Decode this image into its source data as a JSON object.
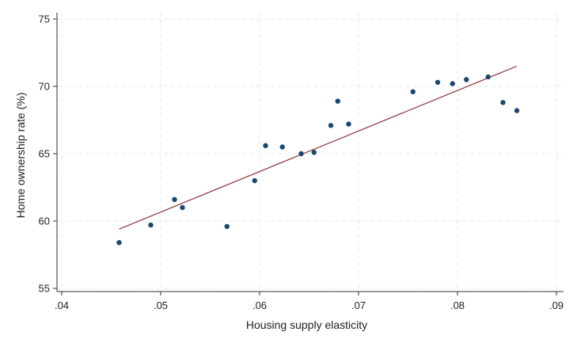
{
  "chart_data": {
    "type": "scatter",
    "title": "",
    "xlabel": "Housing supply elasticity",
    "ylabel": "Home ownership rate (%)",
    "xlim": [
      0.04,
      0.09
    ],
    "ylim": [
      55,
      75
    ],
    "x_ticks": [
      {
        "value": 0.04,
        "label": ".04"
      },
      {
        "value": 0.05,
        "label": ".05"
      },
      {
        "value": 0.06,
        "label": ".06"
      },
      {
        "value": 0.07,
        "label": ".07"
      },
      {
        "value": 0.08,
        "label": ".08"
      },
      {
        "value": 0.09,
        "label": ".09"
      }
    ],
    "y_ticks": [
      {
        "value": 55,
        "label": "55"
      },
      {
        "value": 60,
        "label": "60"
      },
      {
        "value": 65,
        "label": "65"
      },
      {
        "value": 70,
        "label": "70"
      },
      {
        "value": 75,
        "label": "75"
      }
    ],
    "grid": true,
    "grid_style": "dashed",
    "legend": "none",
    "series": [
      {
        "type": "scatter",
        "color": "#1a476f",
        "points": [
          {
            "x": 0.0458,
            "y": 58.4
          },
          {
            "x": 0.049,
            "y": 59.7
          },
          {
            "x": 0.0514,
            "y": 61.6
          },
          {
            "x": 0.0522,
            "y": 61.0
          },
          {
            "x": 0.0567,
            "y": 59.6
          },
          {
            "x": 0.0595,
            "y": 63.0
          },
          {
            "x": 0.0606,
            "y": 65.6
          },
          {
            "x": 0.0623,
            "y": 65.5
          },
          {
            "x": 0.0642,
            "y": 65.0
          },
          {
            "x": 0.0655,
            "y": 65.1
          },
          {
            "x": 0.0672,
            "y": 67.1
          },
          {
            "x": 0.0679,
            "y": 68.9
          },
          {
            "x": 0.069,
            "y": 67.2
          },
          {
            "x": 0.0755,
            "y": 69.6
          },
          {
            "x": 0.078,
            "y": 70.3
          },
          {
            "x": 0.0795,
            "y": 70.2
          },
          {
            "x": 0.0809,
            "y": 70.5
          },
          {
            "x": 0.0831,
            "y": 70.7
          },
          {
            "x": 0.0846,
            "y": 68.8
          },
          {
            "x": 0.086,
            "y": 68.2
          }
        ]
      },
      {
        "type": "line",
        "color": "#90353b",
        "points": [
          {
            "x": 0.0458,
            "y": 59.4
          },
          {
            "x": 0.086,
            "y": 71.5
          }
        ]
      }
    ]
  }
}
